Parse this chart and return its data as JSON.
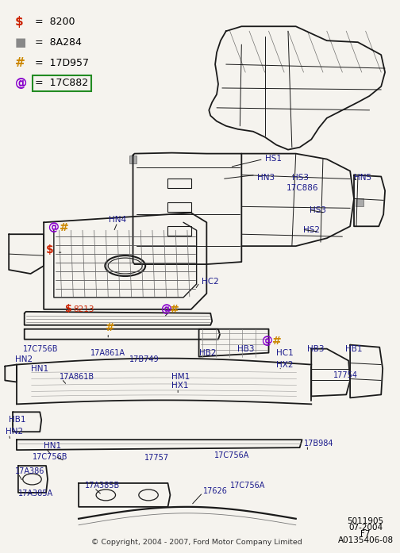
{
  "bg_color": "#f0ede8",
  "legend": [
    {
      "symbol": "$",
      "color": "#cc2200",
      "text": "=  8200",
      "boxed": false
    },
    {
      "symbol": "■",
      "color": "#888888",
      "text": "=  8A284",
      "boxed": false
    },
    {
      "symbol": "#",
      "color": "#cc8800",
      "text": "=  17D957",
      "boxed": false
    },
    {
      "symbol": "@",
      "color": "#8800cc",
      "text": "=  17C882",
      "boxed": true
    }
  ],
  "footer_left": "© Copyright, 2004 - 2007, Ford Motor Company Limited",
  "footer_right": [
    "5011905",
    "07-2004",
    "F7",
    "A0135406-08"
  ]
}
